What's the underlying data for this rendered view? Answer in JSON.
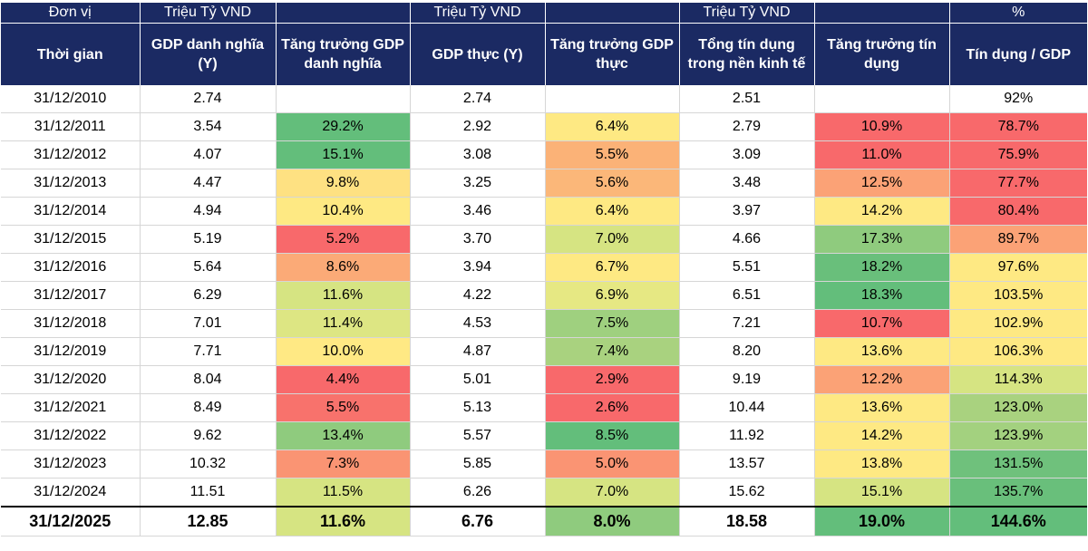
{
  "chart_data": {
    "type": "table",
    "unit_row": [
      "Đơn vị",
      "Triệu Tỷ VND",
      "",
      "Triệu Tỷ VND",
      "",
      "Triệu Tỷ VND",
      "",
      "%"
    ],
    "headers": [
      "Thời gian",
      "GDP danh nghĩa (Y)",
      "Tăng trưởng GDP danh nghĩa",
      "GDP thực (Y)",
      "Tăng trưởng GDP thực",
      "Tổng tín dụng trong nền kinh tế",
      "Tăng trưởng tín dụng",
      "Tín dụng / GDP"
    ],
    "rows": [
      [
        "31/12/2010",
        "2.74",
        "",
        "2.74",
        "",
        "2.51",
        "",
        "92%"
      ],
      [
        "31/12/2011",
        "3.54",
        "29.2%",
        "2.92",
        "6.4%",
        "2.79",
        "10.9%",
        "78.7%"
      ],
      [
        "31/12/2012",
        "4.07",
        "15.1%",
        "3.08",
        "5.5%",
        "3.09",
        "11.0%",
        "75.9%"
      ],
      [
        "31/12/2013",
        "4.47",
        "9.8%",
        "3.25",
        "5.6%",
        "3.48",
        "12.5%",
        "77.7%"
      ],
      [
        "31/12/2014",
        "4.94",
        "10.4%",
        "3.46",
        "6.4%",
        "3.97",
        "14.2%",
        "80.4%"
      ],
      [
        "31/12/2015",
        "5.19",
        "5.2%",
        "3.70",
        "7.0%",
        "4.66",
        "17.3%",
        "89.7%"
      ],
      [
        "31/12/2016",
        "5.64",
        "8.6%",
        "3.94",
        "6.7%",
        "5.51",
        "18.2%",
        "97.6%"
      ],
      [
        "31/12/2017",
        "6.29",
        "11.6%",
        "4.22",
        "6.9%",
        "6.51",
        "18.3%",
        "103.5%"
      ],
      [
        "31/12/2018",
        "7.01",
        "11.4%",
        "4.53",
        "7.5%",
        "7.21",
        "10.7%",
        "102.9%"
      ],
      [
        "31/12/2019",
        "7.71",
        "10.0%",
        "4.87",
        "7.4%",
        "8.20",
        "13.6%",
        "106.3%"
      ],
      [
        "31/12/2020",
        "8.04",
        "4.4%",
        "5.01",
        "2.9%",
        "9.19",
        "12.2%",
        "114.3%"
      ],
      [
        "31/12/2021",
        "8.49",
        "5.5%",
        "5.13",
        "2.6%",
        "10.44",
        "13.6%",
        "123.0%"
      ],
      [
        "31/12/2022",
        "9.62",
        "13.4%",
        "5.57",
        "8.5%",
        "11.92",
        "14.2%",
        "123.9%"
      ],
      [
        "31/12/2023",
        "10.32",
        "7.3%",
        "5.85",
        "5.0%",
        "13.57",
        "13.8%",
        "131.5%"
      ],
      [
        "31/12/2024",
        "11.51",
        "11.5%",
        "6.26",
        "7.0%",
        "15.62",
        "15.1%",
        "135.7%"
      ],
      [
        "31/12/2025",
        "12.85",
        "11.6%",
        "6.76",
        "8.0%",
        "18.58",
        "19.0%",
        "144.6%"
      ]
    ],
    "cell_colors": {
      "col_2": [
        "",
        "#63be7b",
        "#63be7b",
        "#fee182",
        "#fee983",
        "#f8696b",
        "#fbaa77",
        "#d6e482",
        "#dde683",
        "#ffe984",
        "#f8696b",
        "#f8726c",
        "#8fcb7e",
        "#fa9473",
        "#d6e482",
        "#d6e482"
      ],
      "col_4": [
        "",
        "#fee983",
        "#fbb277",
        "#fbb779",
        "#fee983",
        "#d6e482",
        "#fee983",
        "#e6e883",
        "#9fd07f",
        "#a9d27f",
        "#f8696b",
        "#f8696b",
        "#63be7b",
        "#fa9473",
        "#d6e482",
        "#8fcb7e"
      ],
      "col_6": [
        "",
        "#f8696b",
        "#f8696b",
        "#fba276",
        "#fee983",
        "#8fcb7e",
        "#69bf7b",
        "#63be7b",
        "#f8696b",
        "#fee983",
        "#fba276",
        "#fee983",
        "#fee983",
        "#fee983",
        "#d6e482",
        "#63be7b"
      ],
      "col_7": [
        "",
        "#f8696b",
        "#f8696b",
        "#f8696b",
        "#f8696b",
        "#fba276",
        "#fee983",
        "#fee983",
        "#fee983",
        "#fee983",
        "#d6e482",
        "#a9d27f",
        "#a3d17f",
        "#6fc17c",
        "#69bf7b",
        "#63be7b"
      ]
    }
  }
}
